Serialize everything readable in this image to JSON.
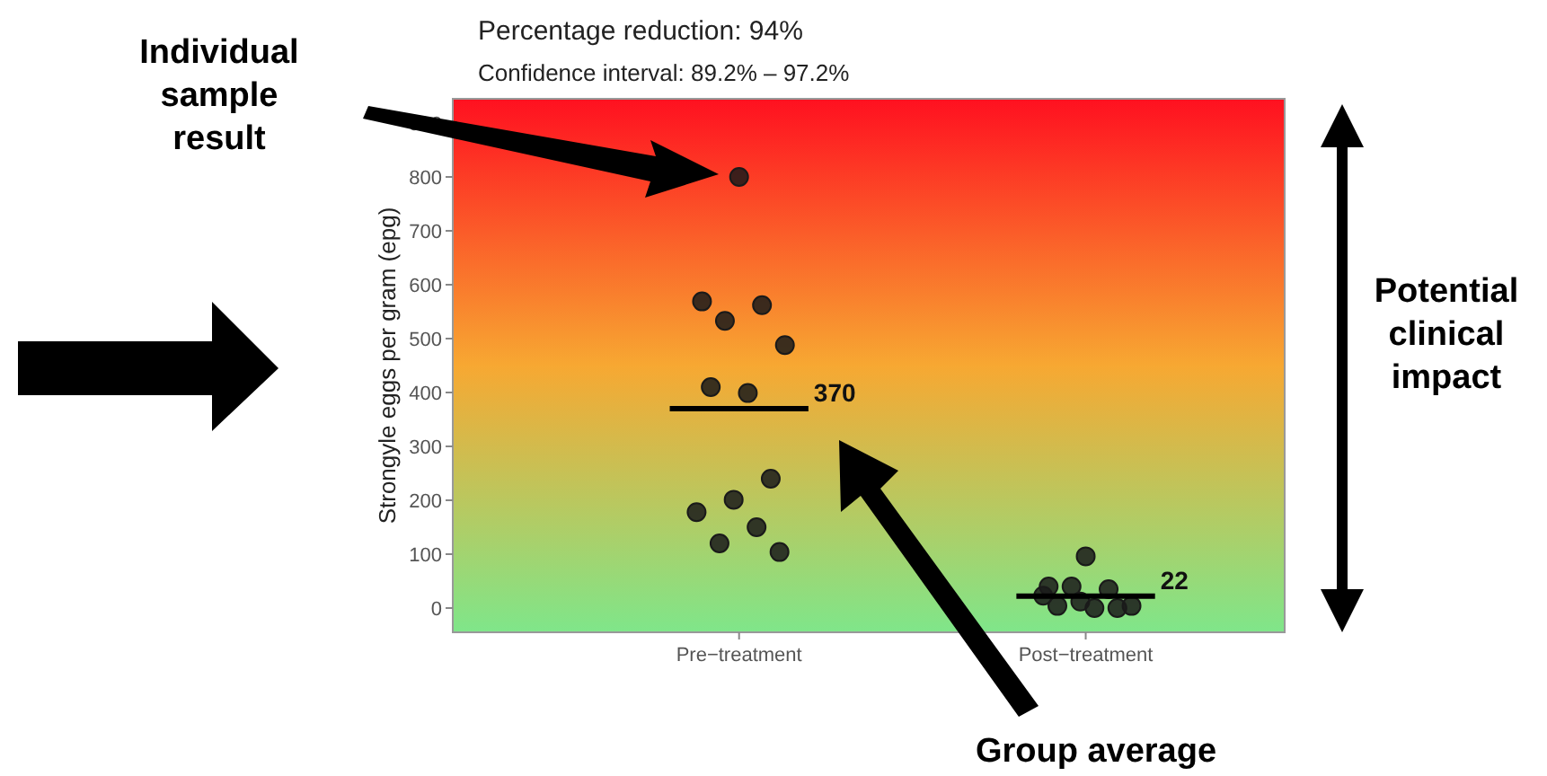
{
  "chart_data": {
    "type": "scatter",
    "title": "Percentage reduction: 94%",
    "subtitle": "Confidence interval: 89.2% – 97.2%",
    "ylabel": "Strongyle eggs per gram (epg)",
    "categories": [
      "Pre−treatment",
      "Post−treatment"
    ],
    "ylim": [
      -45,
      945
    ],
    "yticks": [
      0,
      100,
      200,
      300,
      400,
      500,
      600,
      700,
      800,
      900
    ],
    "grid": false,
    "legend": false,
    "marker": "circle",
    "ref_lines": [
      {
        "axis": "y",
        "value": 370,
        "label": "370",
        "color": "#000000"
      },
      {
        "axis": "y",
        "value": 22,
        "label": "22",
        "color": "#000000"
      }
    ],
    "annotations": [
      "Individual sample result",
      "Group average",
      "Potential clinical impact"
    ],
    "series": [
      {
        "color": "#1a1a1a",
        "x": [
          "Pre−treatment",
          "Pre−treatment",
          "Pre−treatment",
          "Pre−treatment",
          "Pre−treatment",
          "Pre−treatment",
          "Pre−treatment",
          "Pre−treatment",
          "Pre−treatment",
          "Pre−treatment",
          "Pre−treatment",
          "Pre−treatment",
          "Pre−treatment",
          "Post−treatment",
          "Post−treatment",
          "Post−treatment",
          "Post−treatment",
          "Post−treatment",
          "Post−treatment",
          "Post−treatment",
          "Post−treatment",
          "Post−treatment",
          "Post−treatment"
        ],
        "values": [
          800,
          569,
          562,
          533,
          488,
          399,
          410,
          240,
          201,
          178,
          150,
          120,
          104,
          96,
          40,
          35,
          40,
          4,
          0,
          4,
          0,
          12,
          23
        ]
      }
    ]
  }
}
